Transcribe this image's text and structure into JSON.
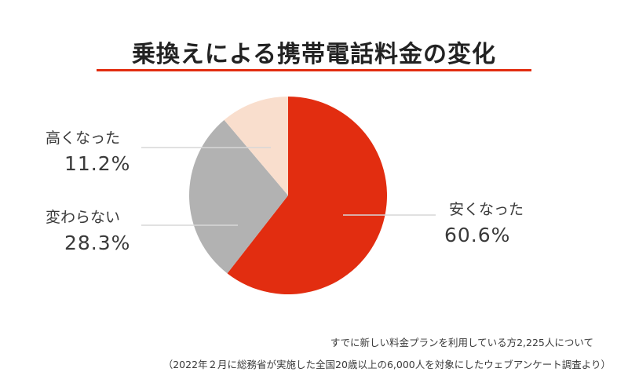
{
  "colors": {
    "accent": "#e22d10",
    "gray": "#b2b2b2",
    "peach": "#f9decd",
    "line": "#d7d7d7"
  },
  "chart_data": {
    "type": "pie",
    "title": "乗換えによる携帯電話料金の変化",
    "slices": [
      {
        "label": "安くなった",
        "value": 60.6,
        "display": "60.6%",
        "color": "#e22d10"
      },
      {
        "label": "変わらない",
        "value": 28.3,
        "display": "28.3%",
        "color": "#b2b2b2"
      },
      {
        "label": "高くなった",
        "value": 11.2,
        "display": "11.2%",
        "color": "#f9decd"
      }
    ],
    "start": "12 o'clock",
    "direction": "clockwise"
  },
  "notes": {
    "line1": "すでに新しい料金プランを利用している方2,225人について",
    "line2": "（2022年２月に総務省が実施した全国20歳以上の6,000人を対象にしたウェブアンケート調査より）"
  }
}
